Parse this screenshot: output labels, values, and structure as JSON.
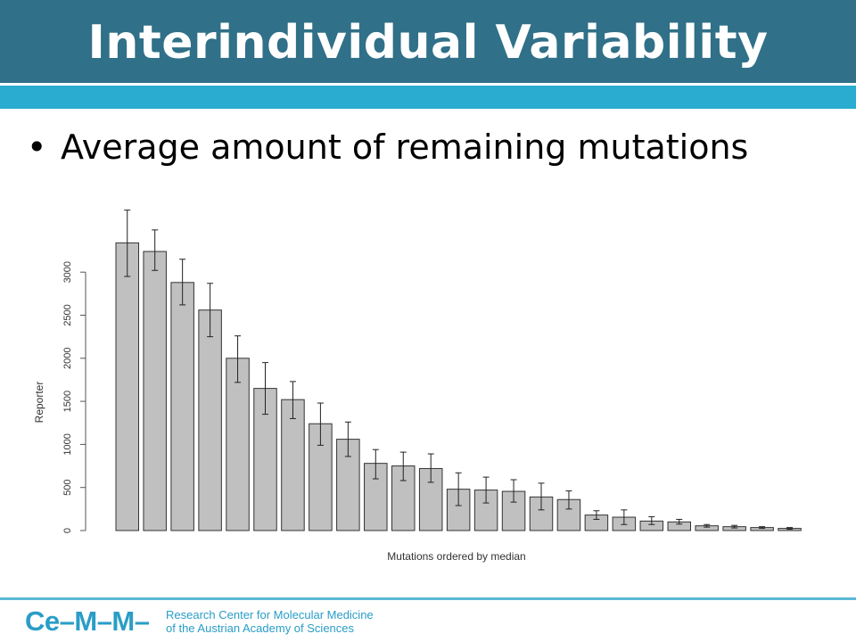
{
  "slide": {
    "title": "Interindividual Variability",
    "bullet": "Average amount of remaining mutations"
  },
  "footer": {
    "logo": "Ce–M–M–",
    "org_line1": "Research Center for Molecular Medicine",
    "org_line2": "of the Austrian Academy of Sciences"
  },
  "colors": {
    "title_bar": "#307088",
    "accent_stripe": "#29acd0",
    "bar_fill": "#c0c0c0",
    "footer_text": "#2a9dc6"
  },
  "chart_data": {
    "type": "bar",
    "xlabel": "Mutations ordered by median",
    "ylabel": "Reporter",
    "ylim": [
      0,
      3100
    ],
    "yticks": [
      0,
      500,
      1000,
      1500,
      2000,
      2500,
      3000
    ],
    "grid": false,
    "values": [
      3340,
      3240,
      2880,
      2560,
      2000,
      1650,
      1520,
      1240,
      1060,
      780,
      750,
      720,
      480,
      470,
      455,
      390,
      360,
      180,
      155,
      110,
      100,
      55,
      45,
      35,
      25
    ],
    "error_low": [
      2950,
      3020,
      2620,
      2250,
      1720,
      1350,
      1300,
      990,
      860,
      600,
      580,
      560,
      290,
      320,
      330,
      240,
      250,
      130,
      70,
      70,
      75,
      40,
      30,
      25,
      15
    ],
    "error_high": [
      3720,
      3490,
      3150,
      2870,
      2260,
      1950,
      1730,
      1480,
      1260,
      940,
      910,
      890,
      670,
      620,
      590,
      550,
      460,
      230,
      240,
      160,
      130,
      70,
      60,
      45,
      35
    ]
  }
}
